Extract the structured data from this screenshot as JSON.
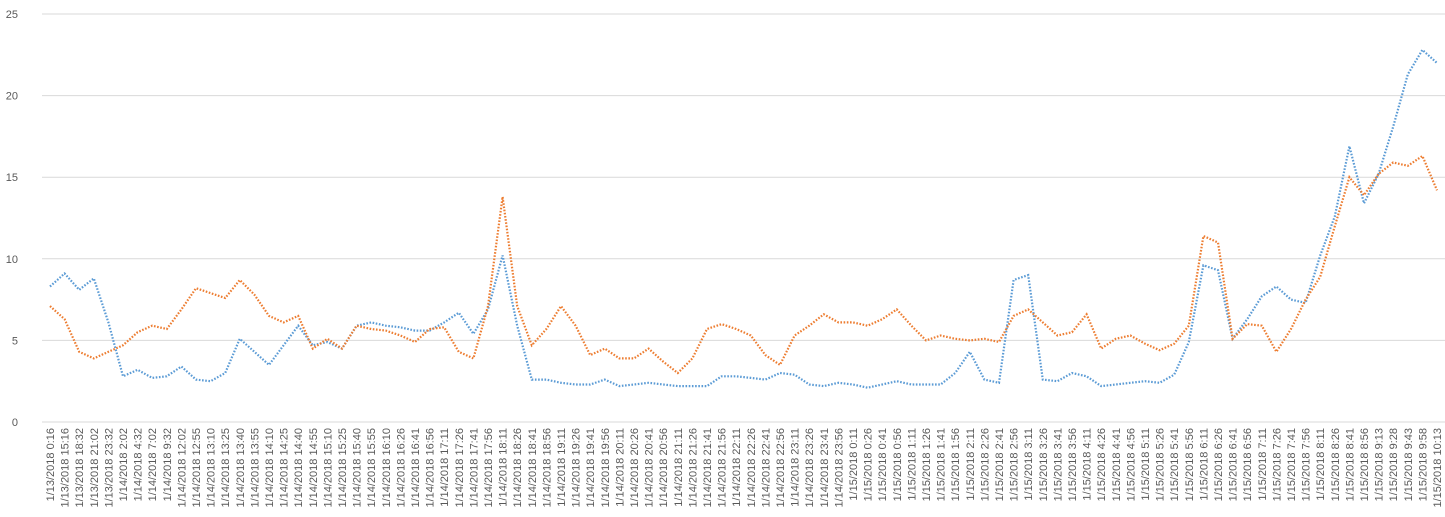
{
  "chart_data": {
    "type": "line",
    "title": "",
    "xlabel": "",
    "ylabel": "",
    "ylim": [
      0,
      25
    ],
    "yticks": [
      0,
      5,
      10,
      15,
      20,
      25
    ],
    "grid": true,
    "legend": "none",
    "line_style": "dotted",
    "categories": [
      "1/13/2018 0:16",
      "1/13/2018 15:16",
      "1/13/2018 18:32",
      "1/13/2018 21:02",
      "1/13/2018 23:32",
      "1/14/2018 2:02",
      "1/14/2018 4:32",
      "1/14/2018 7:02",
      "1/14/2018 9:32",
      "1/14/2018 12:02",
      "1/14/2018 12:55",
      "1/14/2018 13:10",
      "1/14/2018 13:25",
      "1/14/2018 13:40",
      "1/14/2018 13:55",
      "1/14/2018 14:10",
      "1/14/2018 14:25",
      "1/14/2018 14:40",
      "1/14/2018 14:55",
      "1/14/2018 15:10",
      "1/14/2018 15:25",
      "1/14/2018 15:40",
      "1/14/2018 15:55",
      "1/14/2018 16:10",
      "1/14/2018 16:26",
      "1/14/2018 16:41",
      "1/14/2018 16:56",
      "1/14/2018 17:11",
      "1/14/2018 17:26",
      "1/14/2018 17:41",
      "1/14/2018 17:56",
      "1/14/2018 18:11",
      "1/14/2018 18:26",
      "1/14/2018 18:41",
      "1/14/2018 18:56",
      "1/14/2018 19:11",
      "1/14/2018 19:26",
      "1/14/2018 19:41",
      "1/14/2018 19:56",
      "1/14/2018 20:11",
      "1/14/2018 20:26",
      "1/14/2018 20:41",
      "1/14/2018 20:56",
      "1/14/2018 21:11",
      "1/14/2018 21:26",
      "1/14/2018 21:41",
      "1/14/2018 21:56",
      "1/14/2018 22:11",
      "1/14/2018 22:26",
      "1/14/2018 22:41",
      "1/14/2018 22:56",
      "1/14/2018 23:11",
      "1/14/2018 23:26",
      "1/14/2018 23:41",
      "1/14/2018 23:56",
      "1/15/2018 0:11",
      "1/15/2018 0:26",
      "1/15/2018 0:41",
      "1/15/2018 0:56",
      "1/15/2018 1:11",
      "1/15/2018 1:26",
      "1/15/2018 1:41",
      "1/15/2018 1:56",
      "1/15/2018 2:11",
      "1/15/2018 2:26",
      "1/15/2018 2:41",
      "1/15/2018 2:56",
      "1/15/2018 3:11",
      "1/15/2018 3:26",
      "1/15/2018 3:41",
      "1/15/2018 3:56",
      "1/15/2018 4:11",
      "1/15/2018 4:26",
      "1/15/2018 4:41",
      "1/15/2018 4:56",
      "1/15/2018 5:11",
      "1/15/2018 5:26",
      "1/15/2018 5:41",
      "1/15/2018 5:56",
      "1/15/2018 6:11",
      "1/15/2018 6:26",
      "1/15/2018 6:41",
      "1/15/2018 6:56",
      "1/15/2018 7:11",
      "1/15/2018 7:26",
      "1/15/2018 7:41",
      "1/15/2018 7:56",
      "1/15/2018 8:11",
      "1/15/2018 8:26",
      "1/15/2018 8:41",
      "1/15/2018 8:56",
      "1/15/2018 9:13",
      "1/15/2018 9:28",
      "1/15/2018 9:43",
      "1/15/2018 9:58",
      "1/15/2018 10:13"
    ],
    "series": [
      {
        "color": "#5B9BD5",
        "values": [
          8.3,
          9.1,
          8.1,
          8.8,
          6.1,
          2.8,
          3.2,
          2.7,
          2.8,
          3.4,
          2.6,
          2.5,
          3.0,
          5.1,
          4.3,
          3.5,
          4.7,
          5.9,
          4.7,
          4.9,
          4.5,
          5.9,
          6.1,
          5.9,
          5.8,
          5.6,
          5.6,
          6.1,
          6.7,
          5.4,
          6.9,
          10.2,
          5.9,
          2.6,
          2.6,
          2.4,
          2.3,
          2.3,
          2.6,
          2.2,
          2.3,
          2.4,
          2.3,
          2.2,
          2.2,
          2.2,
          2.8,
          2.8,
          2.7,
          2.6,
          3.0,
          2.9,
          2.3,
          2.2,
          2.4,
          2.3,
          2.1,
          2.3,
          2.5,
          2.3,
          2.3,
          2.3,
          3.0,
          4.3,
          2.6,
          2.4,
          8.7,
          9.0,
          2.6,
          2.5,
          3.0,
          2.8,
          2.2,
          2.3,
          2.4,
          2.5,
          2.4,
          2.9,
          4.9,
          9.6,
          9.3,
          5.1,
          6.3,
          7.7,
          8.3,
          7.5,
          7.3,
          10.2,
          12.6,
          16.9,
          13.4,
          15.2,
          18.1,
          21.3,
          22.8,
          22.0
        ]
      },
      {
        "color": "#ED7D31",
        "values": [
          7.1,
          6.3,
          4.3,
          3.9,
          4.3,
          4.7,
          5.5,
          5.9,
          5.7,
          6.9,
          8.2,
          7.9,
          7.6,
          8.7,
          7.8,
          6.5,
          6.1,
          6.5,
          4.5,
          5.1,
          4.5,
          5.9,
          5.7,
          5.6,
          5.3,
          4.9,
          5.7,
          5.8,
          4.3,
          3.9,
          7.1,
          13.8,
          7.1,
          4.7,
          5.7,
          7.1,
          5.9,
          4.1,
          4.5,
          3.9,
          3.9,
          4.5,
          3.7,
          3.0,
          3.9,
          5.7,
          6.0,
          5.7,
          5.3,
          4.1,
          3.5,
          5.3,
          5.9,
          6.6,
          6.1,
          6.1,
          5.9,
          6.3,
          6.9,
          5.9,
          5.0,
          5.3,
          5.1,
          5.0,
          5.1,
          4.9,
          6.5,
          6.9,
          6.1,
          5.3,
          5.5,
          6.6,
          4.5,
          5.1,
          5.3,
          4.8,
          4.4,
          4.8,
          5.9,
          11.4,
          11.0,
          5.1,
          6.0,
          5.9,
          4.3,
          5.7,
          7.5,
          8.9,
          12.0,
          15.0,
          13.9,
          15.2,
          15.9,
          15.7,
          16.3,
          14.2
        ]
      }
    ]
  }
}
